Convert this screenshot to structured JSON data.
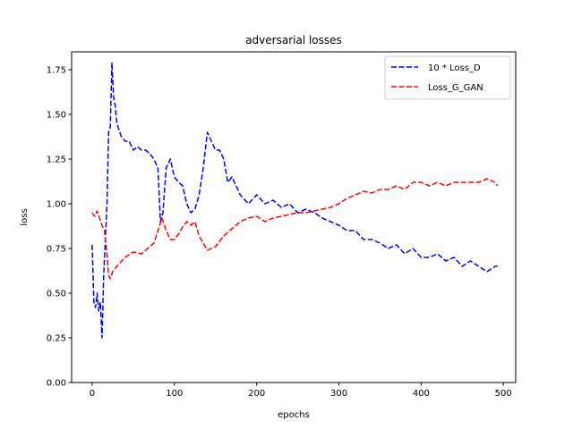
{
  "chart_data": {
    "type": "line",
    "title": "adversarial losses",
    "xlabel": "epochs",
    "ylabel": "loss",
    "xlim": [
      -25,
      515
    ],
    "ylim": [
      0.0,
      1.85
    ],
    "xticks": [
      0,
      100,
      200,
      300,
      400,
      500
    ],
    "yticks": [
      0.0,
      0.25,
      0.5,
      0.75,
      1.0,
      1.25,
      1.5,
      1.75
    ],
    "xtick_labels": [
      "0",
      "100",
      "200",
      "300",
      "400",
      "500"
    ],
    "ytick_labels": [
      "0.00",
      "0.25",
      "0.50",
      "0.75",
      "1.00",
      "1.25",
      "1.50",
      "1.75"
    ],
    "grid": false,
    "legend_position": "top-right",
    "series": [
      {
        "name": "10 * Loss_D",
        "color": "#0000ff",
        "style": "dashed",
        "x": [
          0,
          2,
          4,
          6,
          8,
          10,
          12,
          14,
          16,
          18,
          20,
          22,
          24,
          26,
          28,
          30,
          35,
          40,
          45,
          50,
          55,
          60,
          65,
          70,
          75,
          80,
          83,
          86,
          90,
          95,
          100,
          105,
          110,
          115,
          120,
          125,
          130,
          135,
          140,
          145,
          150,
          155,
          160,
          165,
          170,
          175,
          180,
          190,
          200,
          210,
          220,
          230,
          240,
          250,
          260,
          270,
          280,
          290,
          300,
          310,
          320,
          330,
          340,
          350,
          360,
          370,
          380,
          390,
          400,
          410,
          420,
          430,
          440,
          450,
          460,
          470,
          480,
          490,
          493
        ],
        "y": [
          0.77,
          0.45,
          0.42,
          0.5,
          0.4,
          0.45,
          0.25,
          0.6,
          0.8,
          1.0,
          1.4,
          1.43,
          1.79,
          1.6,
          1.55,
          1.45,
          1.38,
          1.35,
          1.35,
          1.3,
          1.32,
          1.3,
          1.3,
          1.28,
          1.25,
          1.2,
          0.9,
          0.95,
          1.2,
          1.25,
          1.15,
          1.12,
          1.1,
          1.0,
          0.95,
          0.97,
          1.05,
          1.2,
          1.4,
          1.35,
          1.3,
          1.3,
          1.25,
          1.12,
          1.15,
          1.1,
          1.05,
          1.0,
          1.05,
          1.0,
          1.02,
          0.98,
          1.0,
          0.95,
          0.97,
          0.95,
          0.92,
          0.9,
          0.88,
          0.85,
          0.85,
          0.8,
          0.8,
          0.78,
          0.75,
          0.77,
          0.72,
          0.75,
          0.7,
          0.7,
          0.72,
          0.68,
          0.7,
          0.65,
          0.68,
          0.65,
          0.62,
          0.65,
          0.65
        ]
      },
      {
        "name": "Loss_G_GAN",
        "color": "#ff0000",
        "style": "dashed",
        "x": [
          0,
          3,
          6,
          9,
          12,
          15,
          18,
          20,
          22,
          25,
          30,
          40,
          50,
          60,
          70,
          75,
          80,
          85,
          90,
          95,
          100,
          105,
          110,
          115,
          120,
          125,
          130,
          135,
          140,
          150,
          160,
          170,
          180,
          190,
          200,
          210,
          220,
          230,
          240,
          250,
          260,
          270,
          280,
          290,
          300,
          310,
          320,
          330,
          340,
          350,
          360,
          370,
          380,
          390,
          400,
          410,
          420,
          430,
          440,
          450,
          460,
          470,
          480,
          490,
          493
        ],
        "y": [
          0.95,
          0.93,
          0.96,
          0.92,
          0.88,
          0.85,
          0.72,
          0.6,
          0.58,
          0.62,
          0.65,
          0.7,
          0.73,
          0.72,
          0.76,
          0.78,
          0.85,
          0.92,
          0.85,
          0.8,
          0.8,
          0.83,
          0.87,
          0.9,
          0.88,
          0.9,
          0.82,
          0.78,
          0.74,
          0.76,
          0.82,
          0.86,
          0.9,
          0.92,
          0.93,
          0.9,
          0.92,
          0.93,
          0.94,
          0.95,
          0.95,
          0.96,
          0.97,
          0.98,
          1.0,
          1.03,
          1.05,
          1.07,
          1.06,
          1.08,
          1.08,
          1.1,
          1.08,
          1.12,
          1.12,
          1.1,
          1.12,
          1.1,
          1.12,
          1.12,
          1.12,
          1.12,
          1.14,
          1.12,
          1.1
        ]
      }
    ]
  }
}
